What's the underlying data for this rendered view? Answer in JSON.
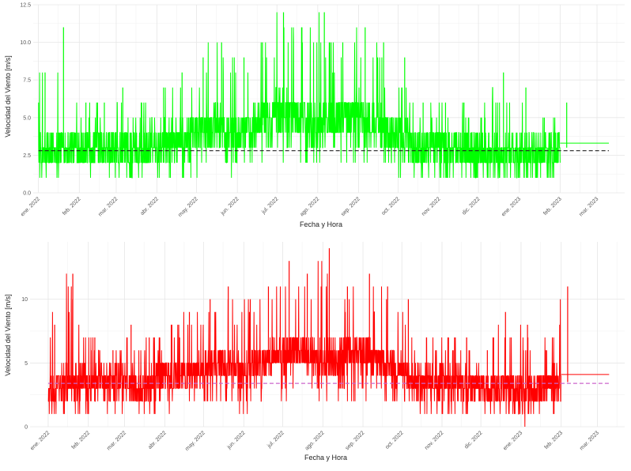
{
  "chart_data": [
    {
      "type": "line",
      "title": "",
      "xlabel": "Fecha y Hora",
      "ylabel": "Velocidad del Viento [m/s]",
      "x_range": [
        "2022-01-01",
        "2023-03-15"
      ],
      "ylim": [
        0,
        12.5
      ],
      "y_ticks": [
        0,
        2.5,
        5,
        7.5,
        10,
        12.5
      ],
      "y_tick_labels": [
        "0.0",
        "2.5",
        "5.0",
        "7.5",
        "10.0",
        "12.5"
      ],
      "x_ticks": [
        "2022-01-01",
        "2022-02-01",
        "2022-03-01",
        "2022-04-01",
        "2022-05-01",
        "2022-06-01",
        "2022-07-01",
        "2022-08-01",
        "2022-09-01",
        "2022-10-01",
        "2022-11-01",
        "2022-12-01",
        "2023-01-01",
        "2023-02-01",
        "2023-03-01"
      ],
      "x_tick_labels": [
        "ene. 2022",
        "feb. 2022",
        "mar. 2022",
        "abr. 2022",
        "may. 2022",
        "jun. 2022",
        "jul. 2022",
        "ago. 2022",
        "sep. 2022",
        "oct. 2022",
        "nov. 2022",
        "dic. 2022",
        "ene. 2023",
        "feb. 2023",
        "mar. 2023"
      ],
      "grid": true,
      "series": [
        {
          "color": "#00ff00",
          "style": "solid",
          "x": [
            "2022-01-01",
            "2022-01-15",
            "2022-02-01",
            "2022-02-15",
            "2022-03-01",
            "2022-03-15",
            "2022-04-01",
            "2022-04-15",
            "2022-05-01",
            "2022-05-15",
            "2022-06-01",
            "2022-06-15",
            "2022-07-01",
            "2022-07-15",
            "2022-08-01",
            "2022-08-15",
            "2022-09-01",
            "2022-09-15",
            "2022-10-01",
            "2022-10-15",
            "2022-11-01",
            "2022-11-15",
            "2022-12-01",
            "2022-12-15",
            "2023-01-01",
            "2023-01-15",
            "2023-02-01"
          ],
          "low": [
            1.0,
            1.0,
            1.0,
            1.0,
            1.0,
            1.0,
            1.0,
            1.0,
            1.0,
            2.0,
            1.0,
            2.0,
            2.0,
            2.0,
            2.0,
            2.0,
            2.0,
            2.0,
            1.0,
            1.0,
            0.0,
            1.0,
            1.0,
            1.0,
            1.0,
            1.0,
            1.0
          ],
          "mid": [
            2.5,
            3.0,
            3.0,
            3.0,
            3.0,
            2.5,
            3.5,
            3.5,
            4.0,
            4.5,
            4.0,
            4.5,
            5.5,
            5.0,
            4.5,
            5.0,
            5.5,
            4.5,
            4.0,
            3.0,
            3.0,
            3.0,
            2.5,
            2.5,
            2.5,
            2.5,
            3.0
          ],
          "high": [
            8.0,
            11.0,
            6.0,
            6.0,
            7.0,
            6.0,
            7.0,
            8.0,
            9.0,
            10.0,
            9.0,
            10.0,
            12.0,
            11.0,
            12.0,
            10.0,
            11.0,
            10.0,
            9.0,
            6.0,
            6.0,
            6.0,
            5.0,
            8.0,
            7.0,
            5.0,
            6.0
          ],
          "tail": {
            "from": "2023-02-01",
            "to": "2023-03-10",
            "value": 3.3
          }
        }
      ],
      "reference_line": {
        "value": 2.8,
        "color": "#222222",
        "style": "dashed"
      }
    },
    {
      "type": "line",
      "title": "",
      "xlabel": "Fecha y Hora",
      "ylabel": "Velocidad del Viento [m/s]",
      "x_range": [
        "2021-12-20",
        "2023-03-15"
      ],
      "ylim": [
        0,
        14
      ],
      "y_ticks": [
        0,
        5,
        10
      ],
      "y_tick_labels": [
        "0",
        "5",
        "10"
      ],
      "x_ticks": [
        "2022-01-01",
        "2022-02-01",
        "2022-03-01",
        "2022-04-01",
        "2022-05-01",
        "2022-06-01",
        "2022-07-01",
        "2022-08-01",
        "2022-09-01",
        "2022-10-01",
        "2022-11-01",
        "2022-12-01",
        "2023-01-01",
        "2023-02-01",
        "2023-03-01"
      ],
      "x_tick_labels": [
        "ene. 2022",
        "feb. 2022",
        "mar. 2022",
        "abr. 2022",
        "may. 2022",
        "jun. 2022",
        "jul. 2022",
        "ago. 2022",
        "sep. 2022",
        "oct. 2022",
        "nov. 2022",
        "dic. 2022",
        "ene. 2023",
        "feb. 2023",
        "mar. 2023"
      ],
      "grid": true,
      "series": [
        {
          "color": "#ff0000",
          "style": "solid",
          "x": [
            "2022-01-01",
            "2022-01-15",
            "2022-02-01",
            "2022-02-15",
            "2022-03-01",
            "2022-03-15",
            "2022-04-01",
            "2022-04-15",
            "2022-05-01",
            "2022-05-15",
            "2022-06-01",
            "2022-06-15",
            "2022-07-01",
            "2022-07-15",
            "2022-08-01",
            "2022-08-15",
            "2022-09-01",
            "2022-09-15",
            "2022-10-01",
            "2022-10-15",
            "2022-11-01",
            "2022-11-15",
            "2022-12-01",
            "2022-12-15",
            "2023-01-01",
            "2023-01-15",
            "2023-02-01"
          ],
          "low": [
            1.0,
            1.0,
            1.0,
            1.0,
            1.0,
            1.0,
            1.0,
            1.0,
            1.0,
            2.0,
            1.0,
            2.0,
            2.0,
            3.0,
            2.0,
            2.0,
            2.0,
            2.0,
            1.0,
            1.0,
            0.0,
            1.0,
            1.0,
            1.0,
            0.0,
            1.0,
            1.0
          ],
          "mid": [
            3.0,
            3.5,
            3.5,
            3.5,
            3.5,
            3.0,
            4.0,
            4.0,
            4.5,
            5.0,
            4.5,
            5.0,
            6.0,
            6.0,
            5.5,
            5.5,
            6.0,
            5.0,
            4.5,
            3.5,
            3.5,
            3.5,
            3.0,
            3.0,
            3.0,
            3.0,
            3.5
          ],
          "high": [
            8.0,
            12.0,
            7.0,
            6.0,
            8.0,
            7.0,
            8.0,
            9.0,
            10.0,
            11.0,
            10.0,
            11.0,
            13.0,
            12.0,
            14.0,
            11.0,
            12.0,
            11.0,
            10.0,
            7.0,
            7.0,
            7.0,
            6.0,
            9.0,
            8.0,
            6.0,
            11.0
          ],
          "tail": {
            "from": "2023-02-01",
            "to": "2023-03-10",
            "value": 4.1
          }
        }
      ],
      "reference_line": {
        "value": 3.4,
        "color": "#cc66cc",
        "style": "dashed"
      }
    }
  ]
}
